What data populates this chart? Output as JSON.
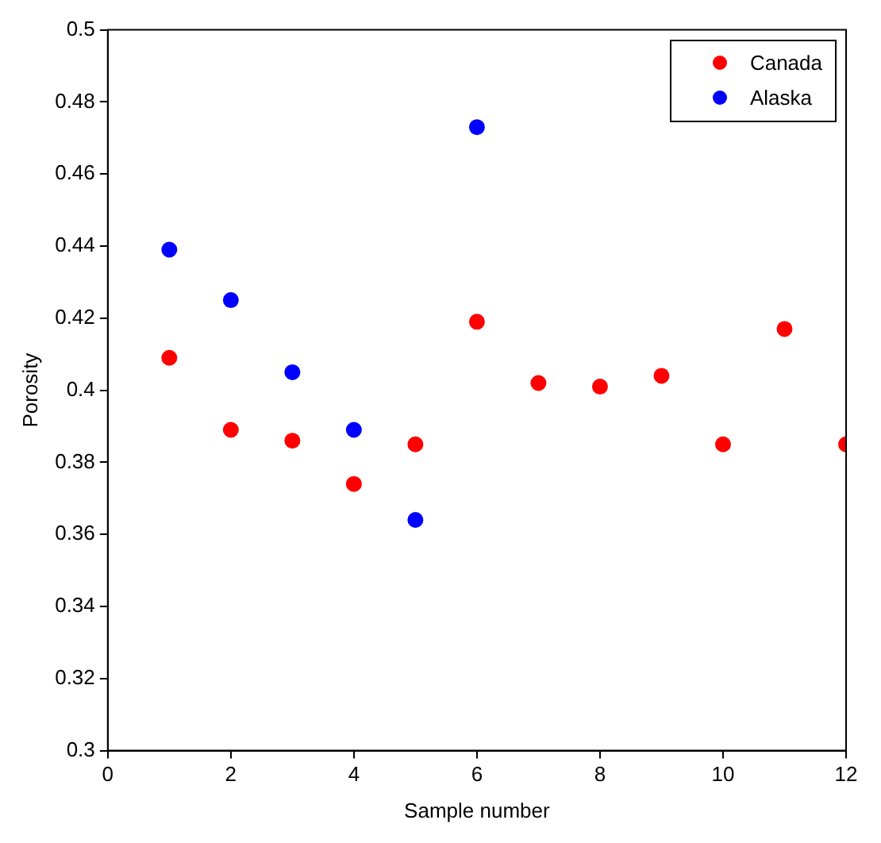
{
  "chart_data": {
    "type": "scatter",
    "xlabel": "Sample number",
    "ylabel": "Porosity",
    "xlim": [
      0,
      12
    ],
    "xticks": [
      0,
      2,
      4,
      6,
      8,
      10,
      12
    ],
    "ylim": [
      0.3,
      0.5
    ],
    "yticks": [
      0.3,
      0.32,
      0.34,
      0.36,
      0.38,
      0.4,
      0.42,
      0.44,
      0.46,
      0.48,
      0.5
    ],
    "grid": false,
    "legend": "top right",
    "marker": "circle",
    "series": [
      {
        "name": "Canada",
        "color": "#ff0000",
        "x": [
          1,
          2,
          3,
          4,
          5,
          6,
          7,
          8,
          9,
          10,
          11,
          12
        ],
        "values": [
          0.409,
          0.389,
          0.386,
          0.374,
          0.385,
          0.419,
          0.402,
          0.401,
          0.404,
          0.385,
          0.417,
          0.385
        ]
      },
      {
        "name": "Alaska",
        "color": "#0000ff",
        "x": [
          1,
          2,
          3,
          4,
          5,
          6
        ],
        "values": [
          0.439,
          0.425,
          0.405,
          0.389,
          0.364,
          0.473
        ]
      }
    ]
  }
}
